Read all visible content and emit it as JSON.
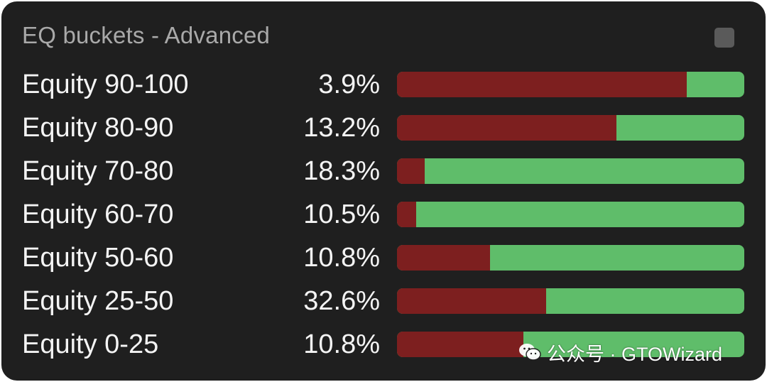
{
  "panel": {
    "title": "EQ buckets - Advanced"
  },
  "buckets": [
    {
      "label": "Equity 90-100",
      "percent": "3.9%",
      "red_fraction": 0.834
    },
    {
      "label": "Equity 80-90",
      "percent": "13.2%",
      "red_fraction": 0.632
    },
    {
      "label": "Equity 70-80",
      "percent": "18.3%",
      "red_fraction": 0.08
    },
    {
      "label": "Equity 60-70",
      "percent": "10.5%",
      "red_fraction": 0.055
    },
    {
      "label": "Equity 50-60",
      "percent": "10.8%",
      "red_fraction": 0.268
    },
    {
      "label": "Equity 25-50",
      "percent": "32.6%",
      "red_fraction": 0.43
    },
    {
      "label": "Equity 0-25",
      "percent": "10.8%",
      "red_fraction": 0.365
    }
  ],
  "watermark": {
    "text": "公众号 · GTOWizard",
    "icon": "wechat-icon"
  },
  "colors": {
    "background": "#1f1f1f",
    "red": "#7d1f1f",
    "green": "#5fbd6a",
    "title": "#a9a9a9",
    "text": "#f4f4f4"
  }
}
